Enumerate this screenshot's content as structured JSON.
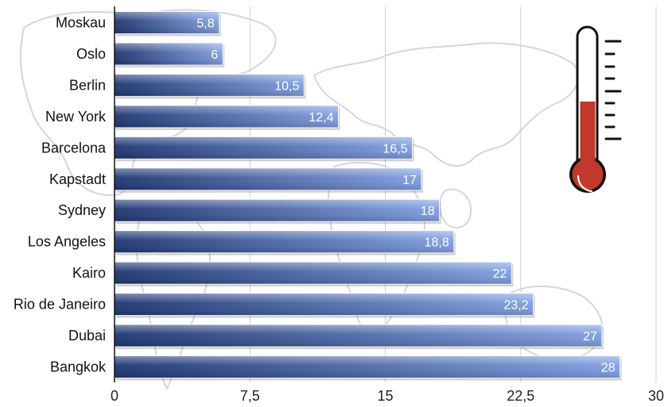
{
  "chart_data": {
    "type": "bar",
    "orientation": "horizontal",
    "categories": [
      "Moskau",
      "Oslo",
      "Berlin",
      "New York",
      "Barcelona",
      "Kapstadt",
      "Sydney",
      "Los Angeles",
      "Kairo",
      "Rio de Janeiro",
      "Dubai",
      "Bangkok"
    ],
    "values": [
      5.8,
      6,
      10.5,
      12.4,
      16.5,
      17,
      18,
      18.8,
      22,
      23.2,
      27,
      28
    ],
    "value_labels": [
      "5,8",
      "6",
      "10,5",
      "12,4",
      "16,5",
      "17",
      "18",
      "18,8",
      "22",
      "23,2",
      "27",
      "28"
    ],
    "xlim": [
      0,
      30
    ],
    "ticks": [
      0,
      7.5,
      15,
      22.5,
      30
    ],
    "tick_labels": [
      "0",
      "7,5",
      "15",
      "22,5",
      "30"
    ],
    "grid": true,
    "bar_color_dark": "#1c3470",
    "bar_color_light": "#7f9ee0"
  },
  "decoration": {
    "background": "world-map-outline",
    "icon": "thermometer-icon",
    "thermometer_fill_color": "#c0392b"
  }
}
